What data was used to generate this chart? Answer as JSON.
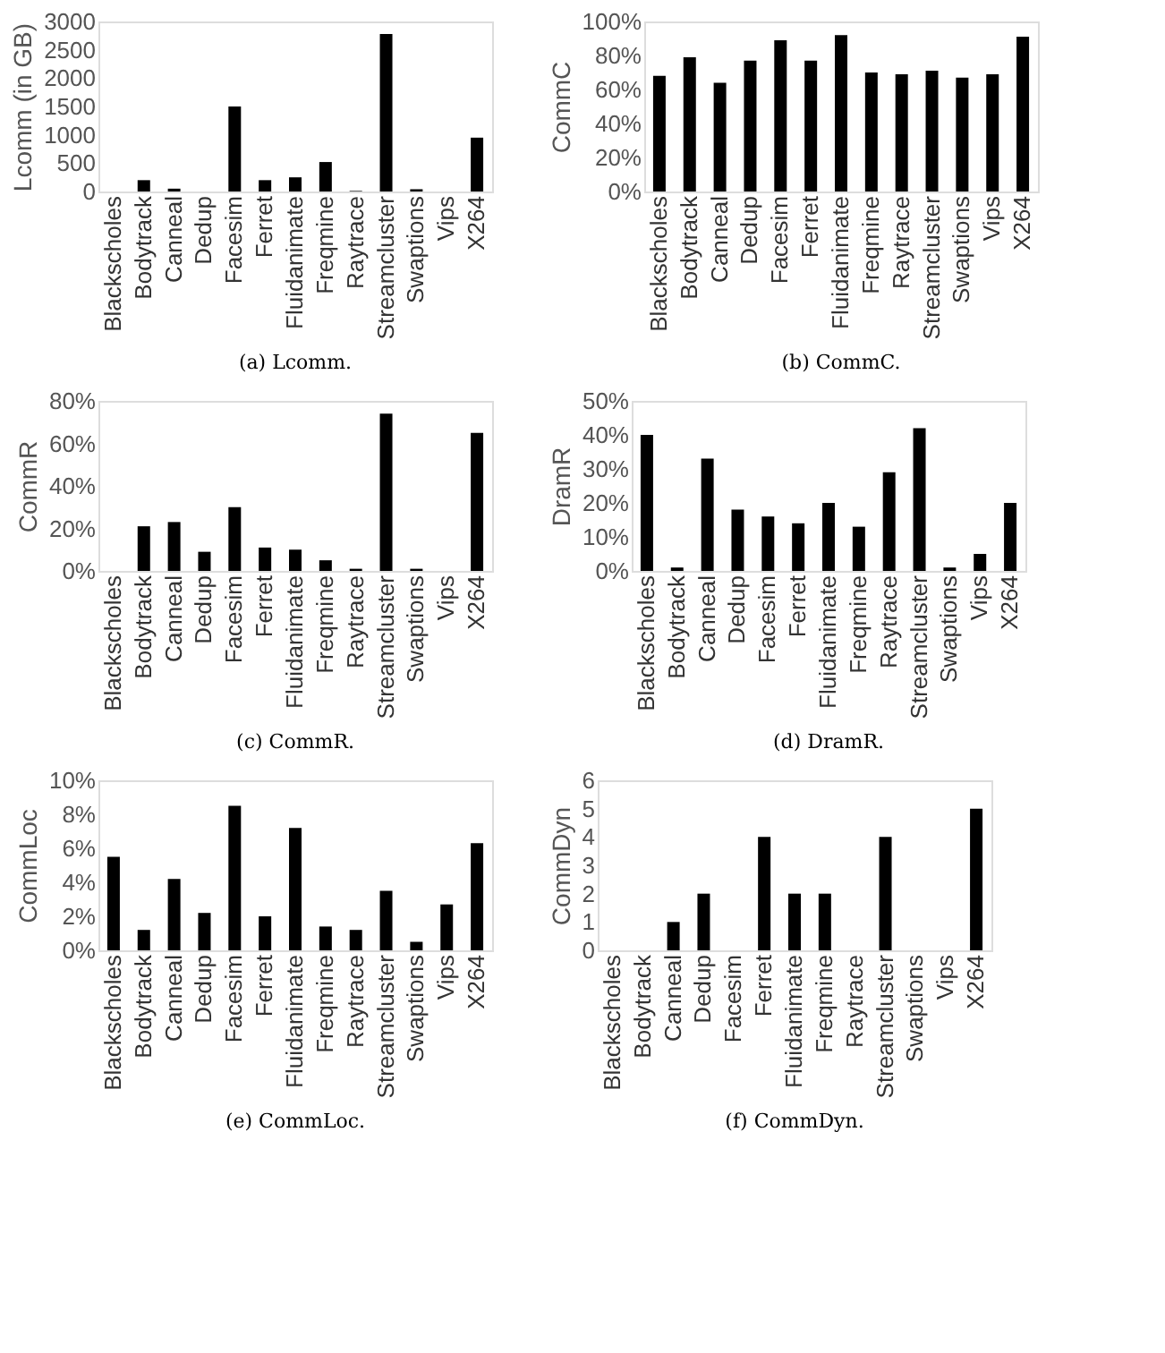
{
  "chart_data": [
    {
      "type": "bar",
      "title": "(a) Lcomm.",
      "ylabel": "Lcomm (in GB)",
      "categories": [
        "Blackscholes",
        "Bodytrack",
        "Canneal",
        "Dedup",
        "Facesim",
        "Ferret",
        "Fluidanimate",
        "Freqmine",
        "Raytrace",
        "Streamcluster",
        "Swaptions",
        "Vips",
        "X264"
      ],
      "series": [
        {
          "color": "#000000",
          "values": [
            0,
            200,
            50,
            0,
            1500,
            200,
            250,
            520,
            10,
            2780,
            40,
            0,
            950
          ]
        }
      ],
      "ylim": [
        0,
        3000
      ],
      "yticks": [
        0,
        500,
        1000,
        1500,
        2000,
        2500,
        3000
      ],
      "grid": false
    },
    {
      "type": "bar",
      "title": "(b) CommC.",
      "ylabel": "CommC",
      "categories": [
        "Blackscholes",
        "Bodytrack",
        "Canneal",
        "Dedup",
        "Facesim",
        "Ferret",
        "Fluidanimate",
        "Freqmine",
        "Raytrace",
        "Streamcluster",
        "Swaptions",
        "Vips",
        "X264"
      ],
      "series": [
        {
          "color": "#000000",
          "values": [
            68,
            79,
            64,
            77,
            89,
            77,
            92,
            70,
            69,
            71,
            67,
            69,
            91
          ]
        }
      ],
      "ylim": [
        0,
        100
      ],
      "yticks": [
        {
          "value": 0,
          "label": "0%"
        },
        {
          "value": 20,
          "label": "20%"
        },
        {
          "value": 40,
          "label": "40%"
        },
        {
          "value": 60,
          "label": "60%"
        },
        {
          "value": 80,
          "label": "80%"
        },
        {
          "value": 100,
          "label": "100%"
        }
      ],
      "grid": false
    },
    {
      "type": "bar",
      "title": "(c) CommR.",
      "ylabel": "CommR",
      "categories": [
        "Blackscholes",
        "Bodytrack",
        "Canneal",
        "Dedup",
        "Facesim",
        "Ferret",
        "Fluidanimate",
        "Freqmine",
        "Raytrace",
        "Streamcluster",
        "Swaptions",
        "Vips",
        "X264"
      ],
      "series": [
        {
          "color": "#000000",
          "values": [
            0,
            21,
            23,
            9,
            30,
            11,
            10,
            5,
            1,
            74,
            1,
            0,
            65
          ]
        }
      ],
      "ylim": [
        0,
        80
      ],
      "yticks": [
        {
          "value": 0,
          "label": "0%"
        },
        {
          "value": 20,
          "label": "20%"
        },
        {
          "value": 40,
          "label": "40%"
        },
        {
          "value": 60,
          "label": "60%"
        },
        {
          "value": 80,
          "label": "80%"
        }
      ],
      "grid": false
    },
    {
      "type": "bar",
      "title": "(d) DramR.",
      "ylabel": "DramR",
      "categories": [
        "Blackscholes",
        "Bodytrack",
        "Canneal",
        "Dedup",
        "Facesim",
        "Ferret",
        "Fluidanimate",
        "Freqmine",
        "Raytrace",
        "Streamcluster",
        "Swaptions",
        "Vips",
        "X264"
      ],
      "series": [
        {
          "color": "#000000",
          "values": [
            40,
            1,
            33,
            18,
            16,
            14,
            20,
            13,
            29,
            42,
            1,
            5,
            20
          ]
        }
      ],
      "ylim": [
        0,
        50
      ],
      "yticks": [
        {
          "value": 0,
          "label": "0%"
        },
        {
          "value": 10,
          "label": "10%"
        },
        {
          "value": 20,
          "label": "20%"
        },
        {
          "value": 30,
          "label": "30%"
        },
        {
          "value": 40,
          "label": "40%"
        },
        {
          "value": 50,
          "label": "50%"
        }
      ],
      "grid": false
    },
    {
      "type": "bar",
      "title": "(e) CommLoc.",
      "ylabel": "CommLoc",
      "categories": [
        "Blackscholes",
        "Bodytrack",
        "Canneal",
        "Dedup",
        "Facesim",
        "Ferret",
        "Fluidanimate",
        "Freqmine",
        "Raytrace",
        "Streamcluster",
        "Swaptions",
        "Vips",
        "X264"
      ],
      "series": [
        {
          "color": "#000000",
          "values": [
            5.5,
            1.2,
            4.2,
            2.2,
            8.5,
            2.0,
            7.2,
            1.4,
            1.2,
            3.5,
            0.5,
            2.7,
            6.3
          ]
        }
      ],
      "ylim": [
        0,
        10
      ],
      "yticks": [
        {
          "value": 0,
          "label": "0%"
        },
        {
          "value": 2,
          "label": "2%"
        },
        {
          "value": 4,
          "label": "4%"
        },
        {
          "value": 6,
          "label": "6%"
        },
        {
          "value": 8,
          "label": "8%"
        },
        {
          "value": 10,
          "label": "10%"
        }
      ],
      "grid": false
    },
    {
      "type": "bar",
      "title": "(f) CommDyn.",
      "ylabel": "CommDyn",
      "categories": [
        "Blackscholes",
        "Bodytrack",
        "Canneal",
        "Dedup",
        "Facesim",
        "Ferret",
        "Fluidanimate",
        "Freqmine",
        "Raytrace",
        "Streamcluster",
        "Swaptions",
        "Vips",
        "X264"
      ],
      "series": [
        {
          "color": "#000000",
          "values": [
            0,
            0,
            1,
            2,
            0,
            4,
            2,
            2,
            0,
            4,
            0,
            0,
            5
          ]
        }
      ],
      "ylim": [
        0,
        6
      ],
      "yticks": [
        0,
        1,
        2,
        3,
        4,
        5,
        6
      ],
      "grid": false
    }
  ]
}
